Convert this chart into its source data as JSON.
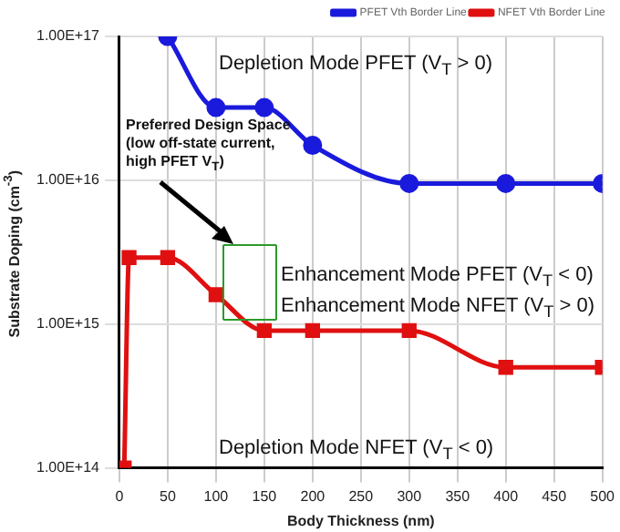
{
  "chart_data": {
    "type": "line",
    "xlabel": "Body Thickness (nm)",
    "ylabel": "Substrate Doping (cm$^{-3}$)",
    "log": "y",
    "xlim": [
      0,
      500
    ],
    "xticks": [
      0,
      50,
      100,
      150,
      200,
      250,
      300,
      350,
      400,
      450,
      500
    ],
    "ylim": [
      100000000000000.0,
      1e+17
    ],
    "yticks": [
      {
        "value": 100000000000000.0,
        "label": "1.00E+14"
      },
      {
        "value": 1000000000000000.0,
        "label": "1.00E+15"
      },
      {
        "value": 1e+16,
        "label": "1.00E+16"
      },
      {
        "value": 1e+17,
        "label": "1.00E+17"
      }
    ],
    "grid": true,
    "legend": "top right",
    "line_style": "solid",
    "series": [
      {
        "name": "PFET Vth Border Line",
        "color": "#1a1adc",
        "marker": "circle",
        "x": [
          50,
          100,
          150,
          200,
          300,
          400,
          500
        ],
        "values": [
          1e+17,
          3.2e+16,
          3.2e+16,
          1.75e+16,
          9500000000000000.0,
          9500000000000000.0,
          9500000000000000.0
        ]
      },
      {
        "name": "NFET Vth Border Line",
        "color": "#e01010",
        "marker": "square",
        "x": [
          5,
          10,
          50,
          100,
          150,
          200,
          300,
          400,
          500
        ],
        "values": [
          100000000000000.0,
          2900000000000000.0,
          2900000000000000.0,
          1600000000000000.0,
          900000000000000.0,
          900000000000000.0,
          900000000000000.0,
          500000000000000.0,
          500000000000000.0
        ]
      }
    ],
    "annotations": [
      "Depletion Mode PFET (V$_{T}$ > 0)",
      "Preferred Design Space (low off-state current, high PFET V$_{T}$)",
      "Enhancement Mode PFET (V$_{T}$ < 0)",
      "Enhancement Mode NFET (V$_{T}$ > 0)",
      "Depletion Mode NFET (V$_{T}$ < 0)"
    ]
  }
}
